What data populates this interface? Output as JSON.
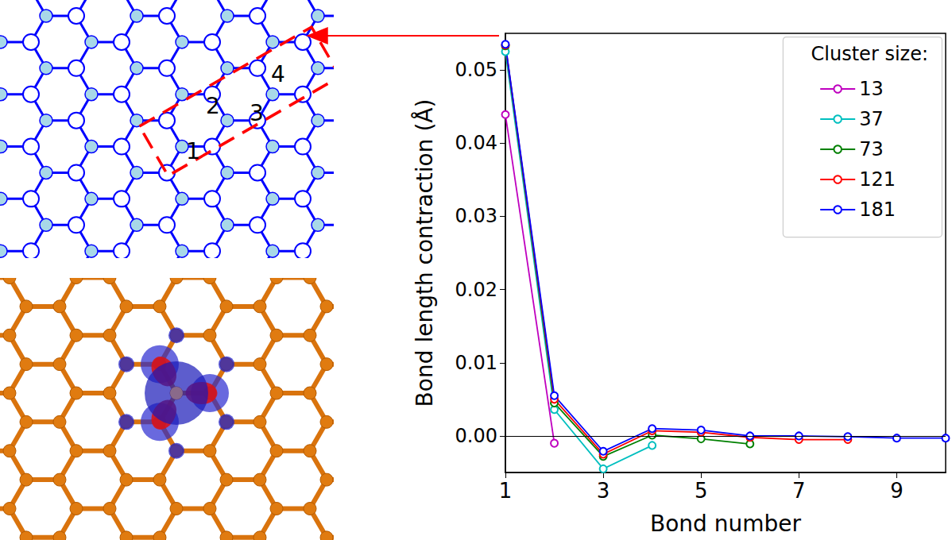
{
  "diagram": {
    "bond_labels": [
      "1",
      "2",
      "3",
      "4"
    ]
  },
  "chart_data": {
    "type": "line",
    "y_label": "Bond length contraction (Å)",
    "x_label": "Bond number",
    "legend_title": "Cluster size:",
    "legend": "upper right",
    "marker": "open_circle",
    "line_style": "solid",
    "grid": false,
    "xlim": [
      1,
      10
    ],
    "xticks": [
      1,
      3,
      5,
      7,
      9
    ],
    "ylim": [
      -0.005,
      0.055
    ],
    "yticks": [
      {
        "value": 0,
        "label": "0.00"
      },
      {
        "value": 0.01,
        "label": "0.01"
      },
      {
        "value": 0.02,
        "label": "0.02"
      },
      {
        "value": 0.03,
        "label": "0.03"
      },
      {
        "value": 0.04,
        "label": "0.04"
      },
      {
        "value": 0.05,
        "label": "0.05"
      }
    ],
    "hline": 0,
    "series": [
      {
        "name": "13",
        "color": "#bf00bf",
        "x": [
          1,
          2
        ],
        "values": [
          0.0439,
          -0.001
        ]
      },
      {
        "name": "37",
        "color": "#00bfbf",
        "x": [
          1,
          2,
          3,
          4
        ],
        "values": [
          0.0525,
          0.0036,
          -0.0045,
          -0.0013
        ]
      },
      {
        "name": "73",
        "color": "#008000",
        "x": [
          1,
          2,
          3,
          4,
          5,
          6
        ],
        "values": [
          0.0533,
          0.0045,
          -0.0028,
          0.0001,
          -0.0004,
          -0.0011
        ]
      },
      {
        "name": "121",
        "color": "#ff0000",
        "x": [
          1,
          2,
          3,
          4,
          5,
          6,
          7,
          8
        ],
        "values": [
          0.0534,
          0.005,
          -0.0025,
          0.0007,
          0.0005,
          -0.0002,
          -0.0005,
          -0.0005
        ]
      },
      {
        "name": "181",
        "color": "#0000ff",
        "x": [
          1,
          2,
          3,
          4,
          5,
          6,
          7,
          8,
          9,
          10
        ],
        "values": [
          0.0535,
          0.0055,
          -0.0021,
          0.001,
          0.0008,
          0,
          0,
          -0.0001,
          -0.0003,
          -0.0003
        ]
      }
    ]
  }
}
